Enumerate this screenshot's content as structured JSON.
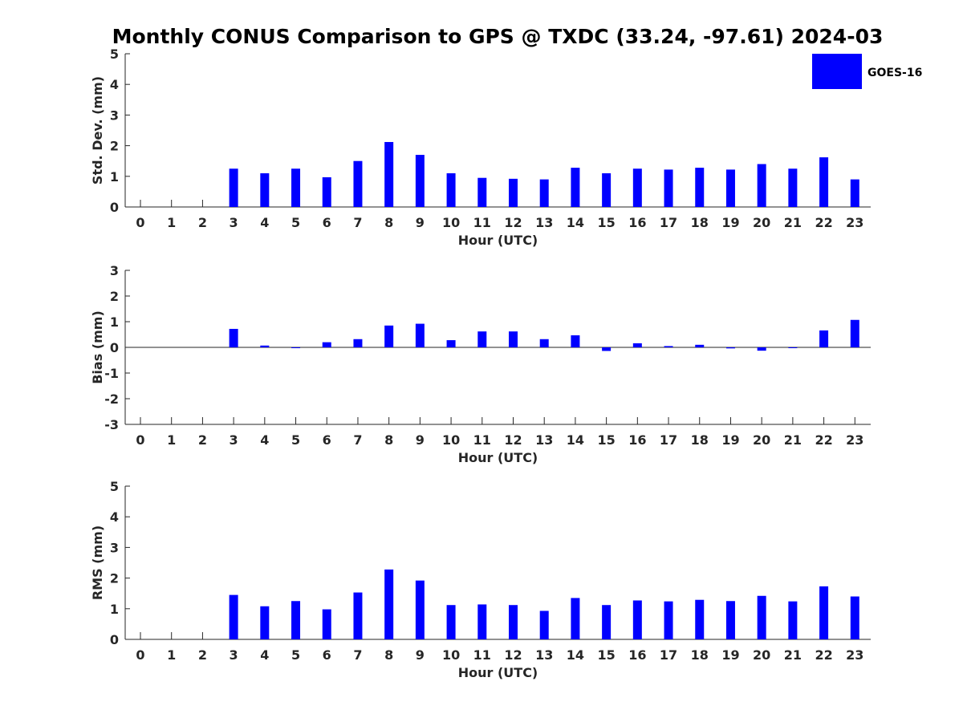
{
  "chart_data": {
    "type": "bar",
    "title": "Monthly CONUS Comparison to GPS @ TXDC (33.24, -97.61) 2024-03",
    "legend": {
      "label": "GOES-16",
      "color": "#0000ff",
      "placement": "top-right"
    },
    "categories": [
      "0",
      "1",
      "2",
      "3",
      "4",
      "5",
      "6",
      "7",
      "8",
      "9",
      "10",
      "11",
      "12",
      "13",
      "14",
      "15",
      "16",
      "17",
      "18",
      "19",
      "20",
      "21",
      "22",
      "23"
    ],
    "panels": [
      {
        "name": "std-dev",
        "ylabel": "Std. Dev. (mm)",
        "xlabel": "Hour (UTC)",
        "ylim": [
          0,
          5
        ],
        "yticks": [
          "0",
          "1",
          "2",
          "3",
          "4",
          "5"
        ],
        "series": [
          {
            "name": "GOES-16",
            "values": [
              null,
              null,
              null,
              1.25,
              1.1,
              1.25,
              0.97,
              1.5,
              2.12,
              1.7,
              1.1,
              0.95,
              0.92,
              0.9,
              1.28,
              1.1,
              1.25,
              1.22,
              1.28,
              1.22,
              1.4,
              1.25,
              1.62,
              0.9
            ]
          }
        ]
      },
      {
        "name": "bias",
        "ylabel": "Bias (mm)",
        "xlabel": "Hour (UTC)",
        "ylim": [
          -3,
          3
        ],
        "yticks": [
          "-3",
          "-2",
          "-1",
          "0",
          "1",
          "2",
          "3"
        ],
        "series": [
          {
            "name": "GOES-16",
            "values": [
              null,
              null,
              null,
              0.72,
              0.07,
              0.0,
              0.2,
              0.32,
              0.85,
              0.92,
              0.28,
              0.62,
              0.62,
              0.32,
              0.47,
              -0.14,
              0.16,
              0.05,
              0.1,
              -0.04,
              -0.13,
              -0.03,
              0.66,
              1.07
            ]
          }
        ]
      },
      {
        "name": "rms",
        "ylabel": "RMS (mm)",
        "xlabel": "Hour (UTC)",
        "ylim": [
          0,
          5
        ],
        "yticks": [
          "0",
          "1",
          "2",
          "3",
          "4",
          "5"
        ],
        "series": [
          {
            "name": "GOES-16",
            "values": [
              null,
              null,
              null,
              1.45,
              1.08,
              1.25,
              0.98,
              1.53,
              2.28,
              1.92,
              1.12,
              1.14,
              1.12,
              0.93,
              1.35,
              1.12,
              1.27,
              1.24,
              1.29,
              1.25,
              1.42,
              1.24,
              1.73,
              1.4
            ]
          }
        ]
      }
    ]
  }
}
